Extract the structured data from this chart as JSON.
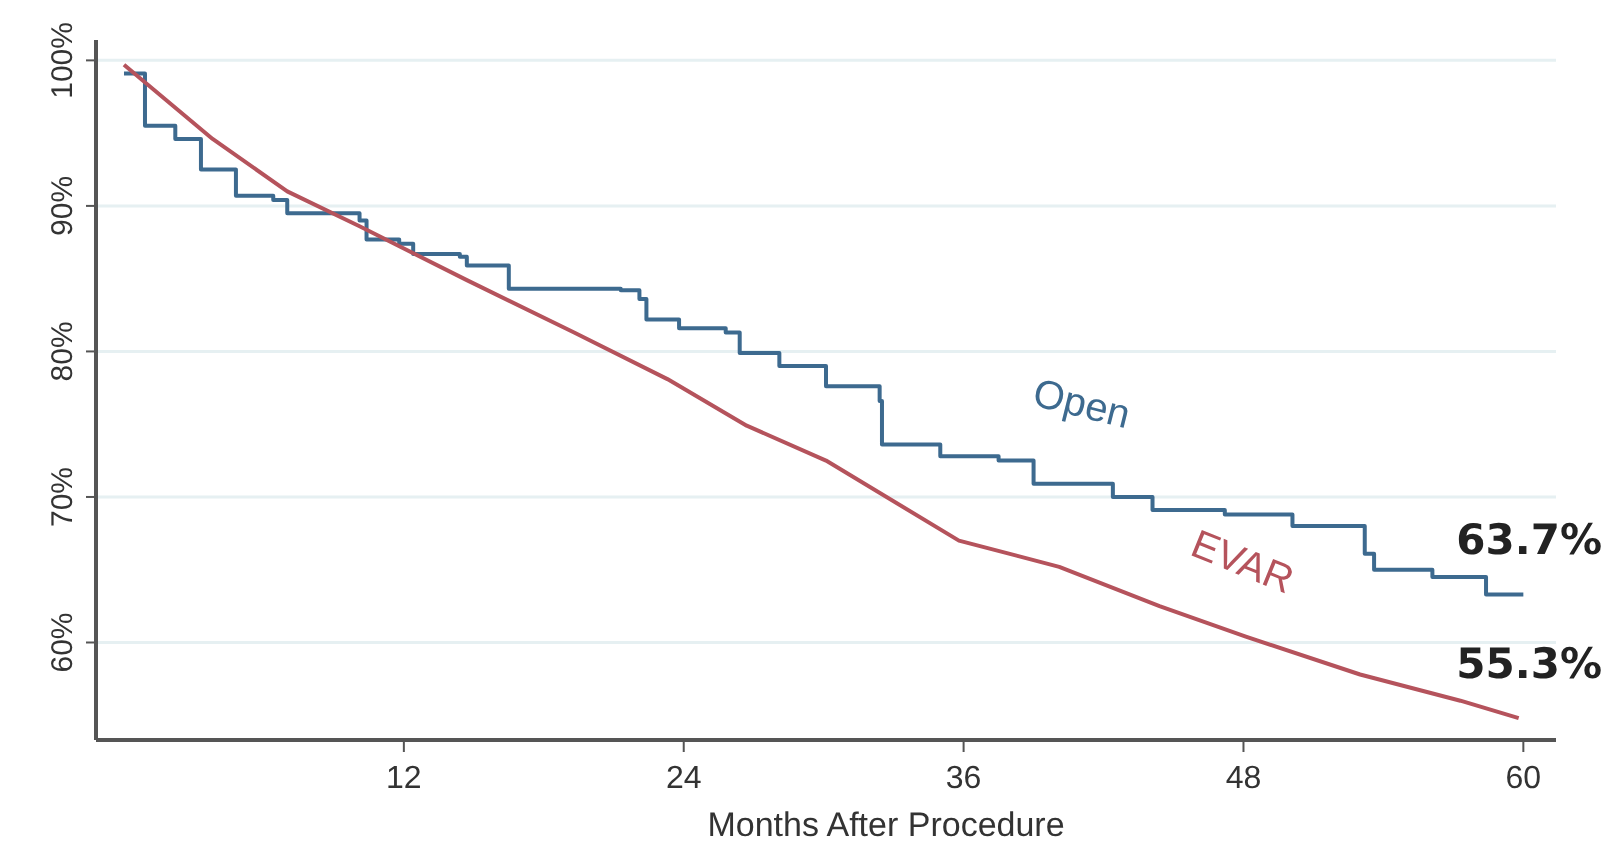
{
  "chart_data": {
    "type": "line",
    "xlabel": "Months After Procedure",
    "xlim": [
      -1.2,
      61.4
    ],
    "ylim": [
      53.3,
      101.4
    ],
    "xticks": [
      12,
      24,
      36,
      48,
      60
    ],
    "yticks": [
      {
        "value": 60,
        "label": "60%"
      },
      {
        "value": 70,
        "label": "70%"
      },
      {
        "value": 80,
        "label": "80%"
      },
      {
        "value": 90,
        "label": "90%"
      },
      {
        "value": 100,
        "label": "100%"
      }
    ],
    "grid": "y",
    "series": [
      {
        "name": "Open",
        "type": "step",
        "color": "#3d6a8f",
        "x": [
          0,
          0.9,
          2.2,
          3.3,
          4.8,
          6.4,
          7,
          10.1,
          10.4,
          11.8,
          12.4,
          14.4,
          14.7,
          16.1,
          16.5,
          21.3,
          22.1,
          22.4,
          23.8,
          25.8,
          26.4,
          28.1,
          30.1,
          32.4,
          32.5,
          35,
          37.5,
          39,
          42.4,
          44.1,
          47.2,
          50.1,
          53.2,
          53.6,
          56.1,
          58.4,
          60
        ],
        "values": [
          99.1,
          95.5,
          94.6,
          92.5,
          90.7,
          90.4,
          89.5,
          89.0,
          87.7,
          87.4,
          86.7,
          86.5,
          85.9,
          85.9,
          84.3,
          84.2,
          83.6,
          82.2,
          81.6,
          81.3,
          79.9,
          79.0,
          77.6,
          76.6,
          73.6,
          72.8,
          72.5,
          70.9,
          70.0,
          69.1,
          68.8,
          68.0,
          66.1,
          65.0,
          64.5,
          63.3,
          63.3
        ]
      },
      {
        "name": "EVAR",
        "color": "#b5535c",
        "x": [
          0,
          3.8,
          7,
          10.1,
          14.7,
          19.3,
          23.3,
          26.7,
          30.1,
          35.8,
          40.1,
          44.4,
          48.1,
          53,
          57.3,
          59.8
        ],
        "values": [
          99.7,
          94.6,
          91,
          88.6,
          84.9,
          81.3,
          78.1,
          74.9,
          72.5,
          67,
          65.2,
          62.5,
          60.4,
          57.8,
          56,
          54.8
        ]
      }
    ],
    "annotations": [
      "63.7%",
      "55.3%"
    ]
  }
}
